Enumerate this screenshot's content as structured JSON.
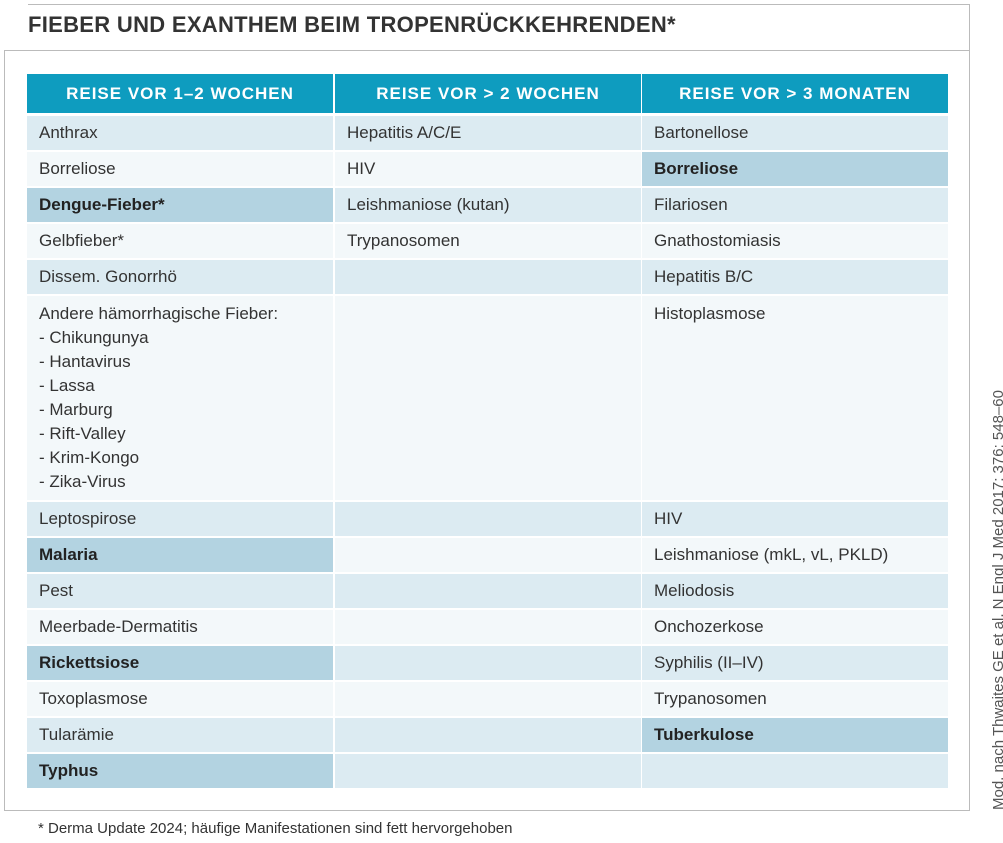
{
  "title": "FIEBER UND EXANTHEM BEIM TROPENRÜCKKEHRENDEN*",
  "table": {
    "columns": [
      {
        "header": "REISE VOR 1–2 WOCHEN",
        "cells": [
          {
            "text": "Anthrax",
            "bold": false
          },
          {
            "text": "Borreliose",
            "bold": false
          },
          {
            "text": "Dengue-Fieber*",
            "bold": true
          },
          {
            "text": "Gelbfieber*",
            "bold": false
          },
          {
            "text": "Dissem. Gonorrhö",
            "bold": false
          },
          {
            "text": "Andere hämorrhagische Fieber:\n- Chikungunya\n- Hantavirus\n- Lassa\n- Marburg\n- Rift-Valley\n- Krim-Kongo\n- Zika-Virus",
            "bold": false
          },
          {
            "text": "Leptospirose",
            "bold": false
          },
          {
            "text": "Malaria",
            "bold": true
          },
          {
            "text": "Pest",
            "bold": false
          },
          {
            "text": "Meerbade-Dermatitis",
            "bold": false
          },
          {
            "text": "Rickettsiose",
            "bold": true
          },
          {
            "text": "Toxoplasmose",
            "bold": false
          },
          {
            "text": "Tularämie",
            "bold": false
          },
          {
            "text": "Typhus",
            "bold": true
          }
        ]
      },
      {
        "header": "REISE VOR > 2 WOCHEN",
        "cells": [
          {
            "text": "Hepatitis A/C/E",
            "bold": false
          },
          {
            "text": "HIV",
            "bold": false
          },
          {
            "text": "Leishmaniose (kutan)",
            "bold": false
          },
          {
            "text": "Trypanosomen",
            "bold": false
          }
        ]
      },
      {
        "header": "REISE VOR > 3 MONATEN",
        "cells": [
          {
            "text": "Bartonellose",
            "bold": false
          },
          {
            "text": "Borreliose",
            "bold": true
          },
          {
            "text": "Filariosen",
            "bold": false
          },
          {
            "text": "Gnathostomiasis",
            "bold": false
          },
          {
            "text": "Hepatitis B/C",
            "bold": false
          },
          {
            "text": "Histoplasmose",
            "bold": false
          },
          {
            "text": "HIV",
            "bold": false
          },
          {
            "text": "Leishmaniose (mkL, vL, PKLD)",
            "bold": false
          },
          {
            "text": "Meliodosis",
            "bold": false
          },
          {
            "text": "Onchozerkose",
            "bold": false
          },
          {
            "text": "Syphilis (II–IV)",
            "bold": false
          },
          {
            "text": "Trypanosomen",
            "bold": false
          },
          {
            "text": "Tuberkulose",
            "bold": true
          }
        ]
      }
    ]
  },
  "footnote": "* Derma Update 2024; häufige Manifestationen sind fett hervorgehoben",
  "source": "Mod. nach Thwaites GE et al, N Engl J Med 2017; 376: 548–60"
}
